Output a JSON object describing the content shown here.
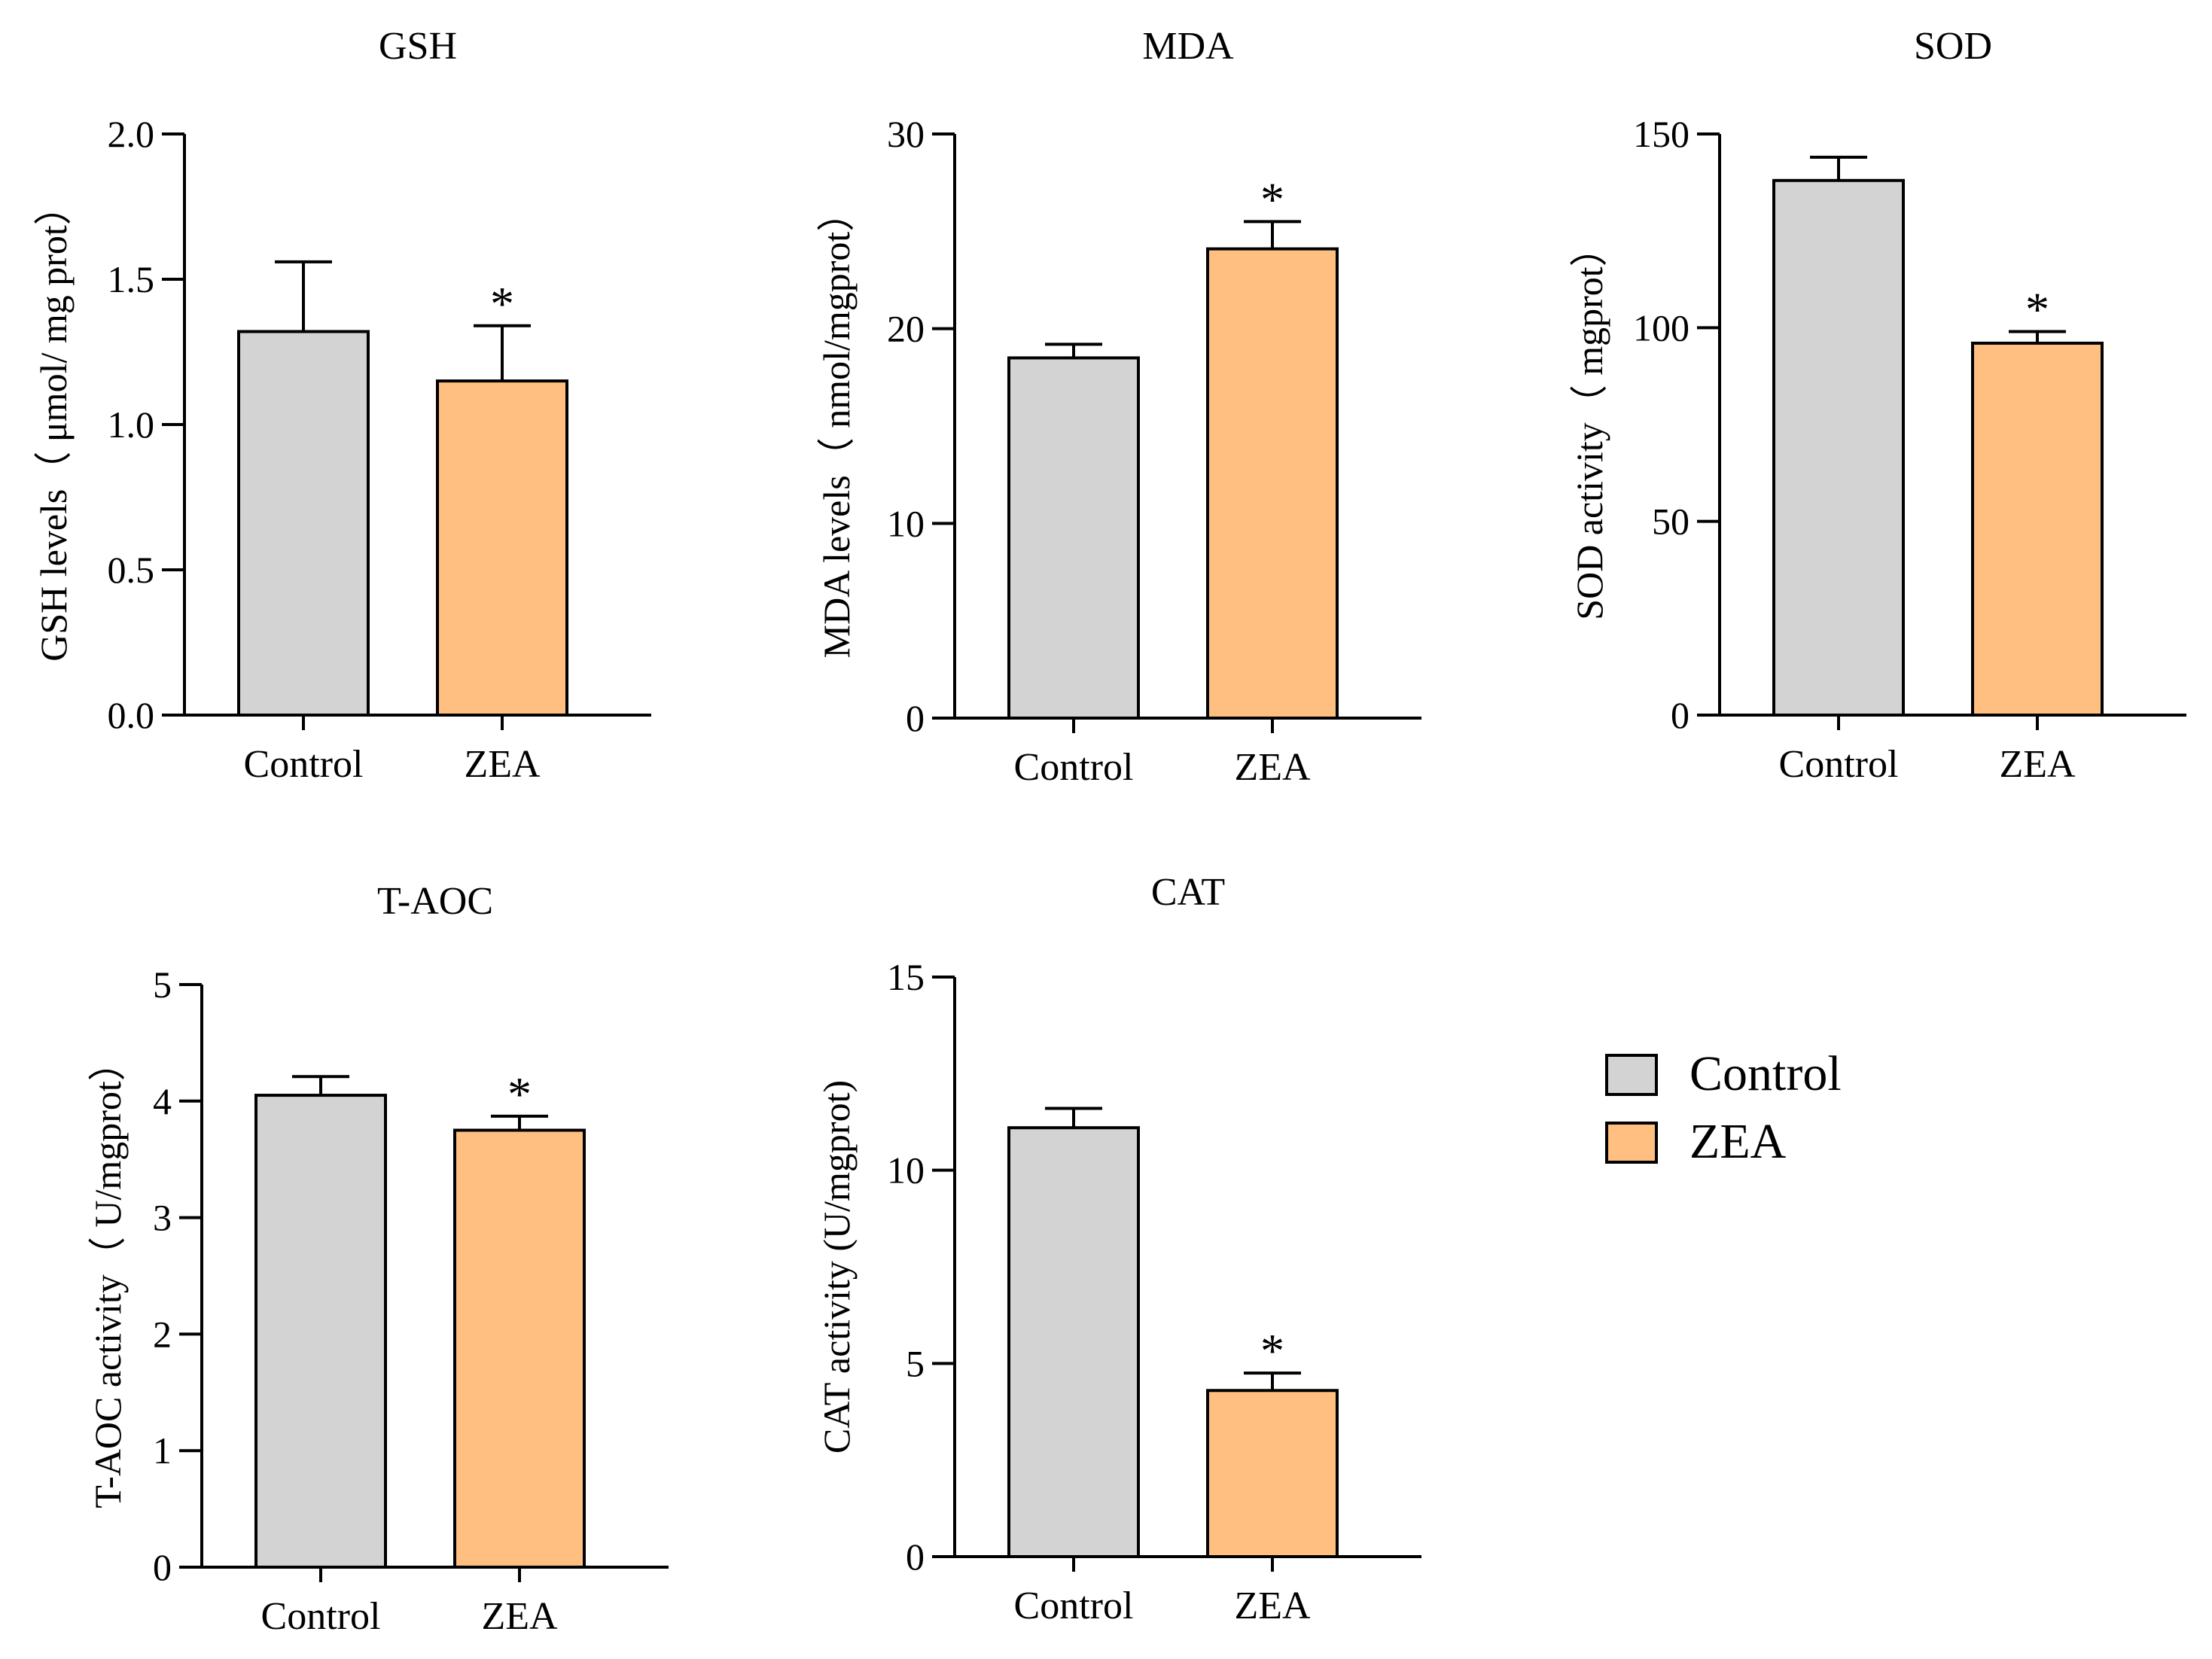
{
  "chart_data": [
    {
      "type": "bar",
      "title": "GSH",
      "xlabel": "",
      "ylabel": "GSH levels（ μmol/ mg prot）",
      "categories": [
        "Control",
        "ZEA"
      ],
      "values": [
        1.32,
        1.15
      ],
      "errors": [
        0.24,
        0.19
      ],
      "significance": [
        "",
        "*"
      ],
      "ylim": [
        0,
        2.0
      ],
      "yticks": [
        "0.0",
        "0.5",
        "1.0",
        "1.5",
        "2.0"
      ],
      "colors": [
        "#d3d3d3",
        "#ffbf80"
      ]
    },
    {
      "type": "bar",
      "title": "MDA",
      "xlabel": "",
      "ylabel": "MDA levels（ nmol/mgprot）",
      "categories": [
        "Control",
        "ZEA"
      ],
      "values": [
        18.5,
        24.1
      ],
      "errors": [
        0.7,
        1.4
      ],
      "significance": [
        "",
        "*"
      ],
      "ylim": [
        0,
        30
      ],
      "yticks": [
        "0",
        "10",
        "20",
        "30"
      ],
      "colors": [
        "#d3d3d3",
        "#ffbf80"
      ]
    },
    {
      "type": "bar",
      "title": "SOD",
      "xlabel": "",
      "ylabel": "SOD activity（ mgprot）",
      "categories": [
        "Control",
        "ZEA"
      ],
      "values": [
        138,
        96
      ],
      "errors": [
        6,
        3
      ],
      "significance": [
        "",
        "*"
      ],
      "ylim": [
        0,
        150
      ],
      "yticks": [
        "0",
        "50",
        "100",
        "150"
      ],
      "colors": [
        "#d3d3d3",
        "#ffbf80"
      ]
    },
    {
      "type": "bar",
      "title": "T-AOC",
      "xlabel": "",
      "ylabel": "T-AOC activity（ U/mgprot）",
      "categories": [
        "Control",
        "ZEA"
      ],
      "values": [
        4.05,
        3.75
      ],
      "errors": [
        0.16,
        0.12
      ],
      "significance": [
        "",
        "*"
      ],
      "ylim": [
        0,
        5
      ],
      "yticks": [
        "0",
        "1",
        "2",
        "3",
        "4",
        "5"
      ],
      "colors": [
        "#d3d3d3",
        "#ffbf80"
      ]
    },
    {
      "type": "bar",
      "title": "CAT",
      "xlabel": "",
      "ylabel": "CAT activity (U/mgprot)",
      "categories": [
        "Control",
        "ZEA"
      ],
      "values": [
        11.1,
        4.3
      ],
      "errors": [
        0.5,
        0.45
      ],
      "significance": [
        "",
        "*"
      ],
      "ylim": [
        0,
        15
      ],
      "yticks": [
        "0",
        "5",
        "10",
        "15"
      ],
      "colors": [
        "#d3d3d3",
        "#ffbf80"
      ]
    }
  ],
  "legend": {
    "placement": "right",
    "items": [
      {
        "label": "Control",
        "color": "#d3d3d3"
      },
      {
        "label": "ZEA",
        "color": "#ffbf80"
      }
    ]
  }
}
